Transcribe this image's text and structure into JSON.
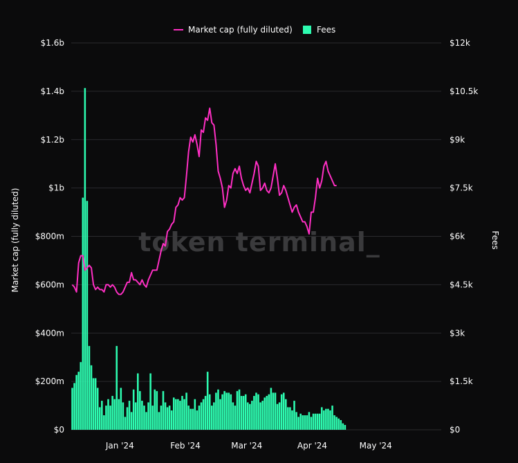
{
  "chart_data": {
    "type": "bar+line",
    "watermark": "token terminal_",
    "legend": {
      "placement": "top-center"
    },
    "colors": {
      "line": "#ff2fc4",
      "bar": "#2dfbb0",
      "grid": "#2b2b2e",
      "background": "#0b0b0c"
    },
    "left_axis": {
      "label": "Market cap (fully diluted)",
      "range": [
        0,
        1600000000.0
      ],
      "ticks": [
        {
          "value": 0,
          "label": "$0"
        },
        {
          "value": 200000000,
          "label": "$200m"
        },
        {
          "value": 400000000,
          "label": "$400m"
        },
        {
          "value": 600000000,
          "label": "$600m"
        },
        {
          "value": 800000000,
          "label": "$800m"
        },
        {
          "value": 1000000000,
          "label": "$1b"
        },
        {
          "value": 1200000000,
          "label": "$1.2b"
        },
        {
          "value": 1400000000,
          "label": "$1.4b"
        },
        {
          "value": 1600000000,
          "label": "$1.6b"
        }
      ]
    },
    "right_axis": {
      "label": "Fees",
      "range": [
        0,
        12000
      ],
      "ticks": [
        {
          "value": 0,
          "label": "$0"
        },
        {
          "value": 1500,
          "label": "$1.5k"
        },
        {
          "value": 3000,
          "label": "$3k"
        },
        {
          "value": 4500,
          "label": "$4.5k"
        },
        {
          "value": 6000,
          "label": "$6k"
        },
        {
          "value": 7500,
          "label": "$7.5k"
        },
        {
          "value": 9000,
          "label": "$9k"
        },
        {
          "value": 10500,
          "label": "$10.5k"
        },
        {
          "value": 12000,
          "label": "$12k"
        }
      ]
    },
    "x_axis": {
      "start": "2023-12-09",
      "end": "2024-06-01",
      "ticks": [
        {
          "date": "2024-01-01",
          "label": "Jan '24"
        },
        {
          "date": "2024-02-01",
          "label": "Feb '24"
        },
        {
          "date": "2024-03-01",
          "label": "Mar '24"
        },
        {
          "date": "2024-04-01",
          "label": "Apr '24"
        },
        {
          "date": "2024-05-01",
          "label": "May '24"
        }
      ]
    },
    "series": [
      {
        "name": "Market cap (fully diluted)",
        "kind": "line",
        "axis": "left",
        "start_date": "2023-12-09",
        "values": [
          600000000,
          590000000,
          570000000,
          690000000,
          720000000,
          720000000,
          660000000,
          670000000,
          680000000,
          670000000,
          600000000,
          580000000,
          590000000,
          580000000,
          580000000,
          570000000,
          600000000,
          600000000,
          590000000,
          600000000,
          590000000,
          570000000,
          560000000,
          560000000,
          570000000,
          590000000,
          610000000,
          610000000,
          650000000,
          620000000,
          620000000,
          610000000,
          600000000,
          620000000,
          600000000,
          590000000,
          620000000,
          640000000,
          660000000,
          660000000,
          660000000,
          700000000,
          740000000,
          770000000,
          760000000,
          820000000,
          830000000,
          850000000,
          860000000,
          920000000,
          930000000,
          960000000,
          950000000,
          960000000,
          1050000000,
          1150000000,
          1210000000,
          1190000000,
          1220000000,
          1180000000,
          1130000000,
          1240000000,
          1230000000,
          1290000000,
          1280000000,
          1330000000,
          1270000000,
          1260000000,
          1180000000,
          1070000000,
          1040000000,
          1000000000,
          920000000,
          950000000,
          1010000000,
          1000000000,
          1060000000,
          1080000000,
          1060000000,
          1090000000,
          1040000000,
          1010000000,
          990000000,
          1000000000,
          980000000,
          1020000000,
          1060000000,
          1110000000,
          1090000000,
          990000000,
          1000000000,
          1020000000,
          990000000,
          980000000,
          1000000000,
          1050000000,
          1100000000,
          1040000000,
          970000000,
          980000000,
          1010000000,
          990000000,
          960000000,
          930000000,
          900000000,
          920000000,
          930000000,
          900000000,
          880000000,
          860000000,
          860000000,
          840000000,
          810000000,
          900000000,
          900000000,
          960000000,
          1040000000,
          1000000000,
          1030000000,
          1090000000,
          1110000000,
          1070000000,
          1050000000,
          1030000000,
          1010000000,
          1010000000
        ]
      },
      {
        "name": "Fees",
        "kind": "bar",
        "axis": "right",
        "start_date": "2023-12-09",
        "values": [
          1300,
          1450,
          1700,
          1800,
          2100,
          7200,
          10600,
          7100,
          2600,
          2000,
          1600,
          1600,
          1300,
          700,
          900,
          450,
          750,
          950,
          750,
          1050,
          950,
          2600,
          950,
          1300,
          850,
          400,
          700,
          900,
          550,
          1250,
          850,
          1750,
          1200,
          900,
          750,
          550,
          850,
          1750,
          750,
          1250,
          1200,
          550,
          750,
          1200,
          850,
          700,
          750,
          600,
          1000,
          950,
          950,
          900,
          1050,
          950,
          1150,
          750,
          650,
          650,
          950,
          600,
          750,
          850,
          950,
          1050,
          1800,
          1100,
          750,
          850,
          1150,
          1250,
          950,
          1100,
          1200,
          1150,
          1150,
          1100,
          850,
          750,
          1200,
          1250,
          1050,
          1050,
          1100,
          850,
          800,
          900,
          1050,
          1150,
          1100,
          850,
          900,
          1000,
          1050,
          1100,
          1300,
          1150,
          1150,
          800,
          850,
          1100,
          1150,
          950,
          700,
          700,
          600,
          900,
          550,
          400,
          500,
          450,
          450,
          450,
          550,
          400,
          500,
          500,
          500,
          500,
          700,
          600,
          650,
          650,
          600,
          750,
          450,
          400,
          350,
          300,
          200,
          150
        ]
      }
    ]
  }
}
